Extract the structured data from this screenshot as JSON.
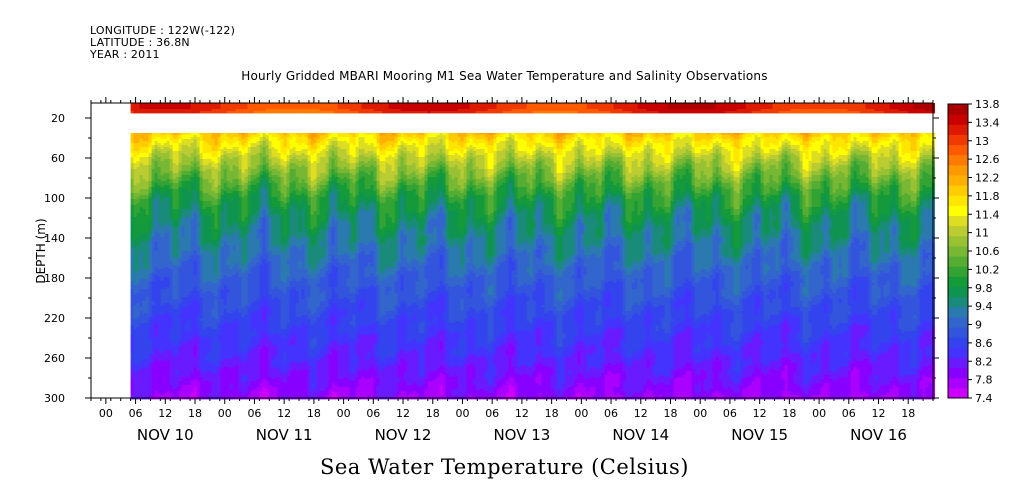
{
  "header": {
    "longitude": "LONGITUDE : 122W(-122)",
    "latitude": "LATITUDE : 36.8N",
    "year": "YEAR : 2011"
  },
  "chart_data": {
    "type": "heatmap",
    "title": "Hourly Gridded MBARI Mooring M1 Sea Water Temperature and Salinity Observations",
    "xlabel": "Sea Water Temperature (Celsius)",
    "ylabel": "DEPTH (m)",
    "y_ticks": [
      20,
      60,
      100,
      140,
      180,
      220,
      260,
      300
    ],
    "ylim": [
      300,
      5
    ],
    "y_inverted": true,
    "x_hour_labels": [
      "00",
      "06",
      "12",
      "18",
      "00",
      "06",
      "12",
      "18",
      "00",
      "06",
      "12",
      "18",
      "00",
      "06",
      "12",
      "18",
      "00",
      "06",
      "12",
      "18",
      "00",
      "06",
      "12",
      "18",
      "00",
      "06",
      "12",
      "18"
    ],
    "x_day_labels": [
      "NOV 10",
      "NOV 11",
      "NOV 12",
      "NOV 13",
      "NOV 14",
      "NOV 15",
      "NOV 16"
    ],
    "x_range": [
      "2011-11-09T21:00",
      "2011-11-16T23:00"
    ],
    "data_start": "2011-11-10T05:00",
    "colorbar": {
      "labels": [
        "13.8",
        "13.4",
        "13",
        "12.6",
        "12.2",
        "11.8",
        "11.4",
        "11",
        "10.6",
        "10.2",
        "9.8",
        "9.4",
        "9",
        "8.6",
        "8.2",
        "7.8",
        "7.4"
      ],
      "levels": [
        7.4,
        7.6,
        7.8,
        8.0,
        8.2,
        8.4,
        8.6,
        8.8,
        9.0,
        9.2,
        9.4,
        9.6,
        9.8,
        10.0,
        10.2,
        10.4,
        10.6,
        10.8,
        11.0,
        11.2,
        11.4,
        11.6,
        11.8,
        12.0,
        12.2,
        12.4,
        12.6,
        12.8,
        13.0,
        13.2,
        13.4,
        13.6,
        13.8
      ],
      "colors": [
        "#cc00ff",
        "#aa00ff",
        "#8800ff",
        "#6a1aff",
        "#4433ff",
        "#3344ee",
        "#3355dd",
        "#3366cc",
        "#2a7ab0",
        "#1a8a7a",
        "#0f9450",
        "#159a3a",
        "#33a333",
        "#55ad33",
        "#77b733",
        "#99c233",
        "#bbcc33",
        "#dddd22",
        "#ffff00",
        "#ffe600",
        "#ffcc00",
        "#ffb000",
        "#ff9900",
        "#ff7a00",
        "#ff5a00",
        "#f03a00",
        "#dd1a00",
        "#c80000",
        "#aa0000"
      ]
    },
    "depth_profile": {
      "depths": [
        10,
        40,
        60,
        80,
        100,
        120,
        140,
        160,
        180,
        200,
        220,
        240,
        260,
        280,
        300
      ],
      "temperature": [
        12.3,
        11.1,
        10.5,
        10.0,
        9.5,
        9.2,
        9.0,
        8.8,
        8.6,
        8.45,
        8.3,
        8.15,
        8.0,
        7.8,
        7.6
      ]
    },
    "no_data_depth_band": [
      15,
      35
    ]
  }
}
